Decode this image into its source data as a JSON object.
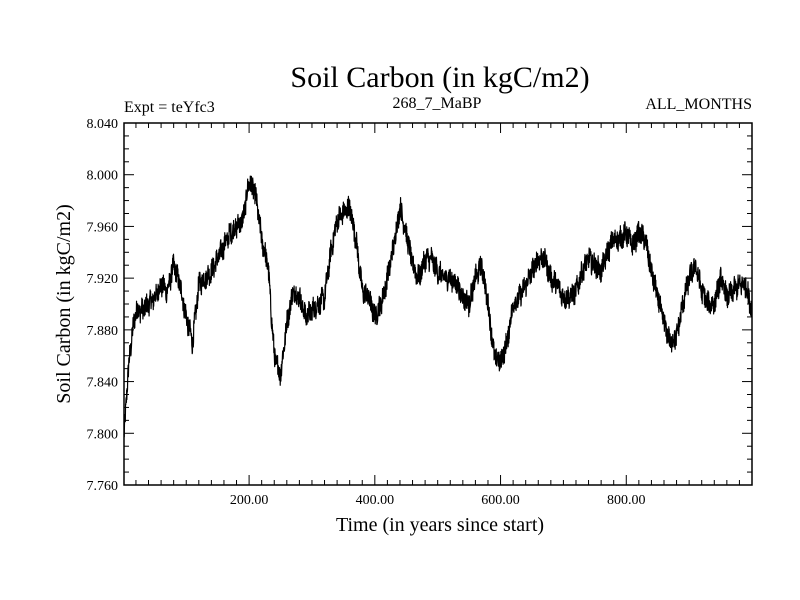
{
  "chart_data": {
    "type": "line",
    "title": "Soil Carbon (in kgC/m2)",
    "subtitle_left": "Expt = teYfc3",
    "subtitle_center": "268_7_MaBP",
    "subtitle_right": "ALL_MONTHS",
    "xlabel": "Time (in years since start)",
    "ylabel": "Soil Carbon (in kgC/m2)",
    "xlim": [
      1,
      1000
    ],
    "ylim": [
      7.76,
      8.04
    ],
    "x_ticks": [
      200,
      400,
      600,
      800
    ],
    "x_tick_labels": [
      "200.00",
      "400.00",
      "600.00",
      "800.00"
    ],
    "y_ticks": [
      7.76,
      7.8,
      7.84,
      7.88,
      7.92,
      7.96,
      8.0,
      8.04
    ],
    "y_tick_labels": [
      "7.760",
      "7.800",
      "7.840",
      "7.880",
      "7.920",
      "7.960",
      "8.000",
      "8.040"
    ],
    "noise_amplitude": 0.008,
    "series": [
      {
        "name": "Soil Carbon",
        "color": "#000000",
        "x": [
          1,
          5,
          10,
          15,
          20,
          30,
          40,
          50,
          60,
          70,
          80,
          90,
          100,
          110,
          120,
          130,
          140,
          150,
          160,
          170,
          180,
          190,
          200,
          210,
          220,
          230,
          240,
          250,
          260,
          270,
          280,
          290,
          300,
          310,
          320,
          330,
          340,
          350,
          360,
          370,
          380,
          390,
          400,
          410,
          420,
          430,
          440,
          450,
          460,
          470,
          480,
          490,
          500,
          510,
          520,
          530,
          540,
          550,
          560,
          570,
          580,
          590,
          600,
          610,
          620,
          630,
          640,
          650,
          660,
          670,
          680,
          690,
          700,
          710,
          720,
          730,
          740,
          750,
          760,
          770,
          780,
          790,
          800,
          810,
          820,
          830,
          840,
          850,
          860,
          870,
          880,
          890,
          900,
          910,
          920,
          930,
          940,
          950,
          960,
          970,
          980,
          990,
          1000
        ],
        "values": [
          7.795,
          7.83,
          7.86,
          7.88,
          7.895,
          7.895,
          7.9,
          7.905,
          7.915,
          7.91,
          7.93,
          7.915,
          7.89,
          7.87,
          7.915,
          7.92,
          7.925,
          7.935,
          7.945,
          7.955,
          7.96,
          7.965,
          7.995,
          7.985,
          7.95,
          7.93,
          7.86,
          7.845,
          7.885,
          7.91,
          7.905,
          7.89,
          7.895,
          7.9,
          7.905,
          7.94,
          7.965,
          7.97,
          7.975,
          7.95,
          7.91,
          7.905,
          7.89,
          7.9,
          7.92,
          7.945,
          7.975,
          7.955,
          7.93,
          7.92,
          7.935,
          7.935,
          7.925,
          7.92,
          7.92,
          7.915,
          7.905,
          7.9,
          7.92,
          7.93,
          7.9,
          7.86,
          7.855,
          7.87,
          7.9,
          7.905,
          7.915,
          7.925,
          7.935,
          7.935,
          7.92,
          7.915,
          7.905,
          7.905,
          7.91,
          7.925,
          7.935,
          7.93,
          7.925,
          7.94,
          7.95,
          7.95,
          7.955,
          7.945,
          7.955,
          7.95,
          7.925,
          7.905,
          7.885,
          7.87,
          7.875,
          7.9,
          7.92,
          7.93,
          7.91,
          7.9,
          7.9,
          7.92,
          7.905,
          7.91,
          7.915,
          7.915,
          7.895
        ]
      }
    ]
  }
}
